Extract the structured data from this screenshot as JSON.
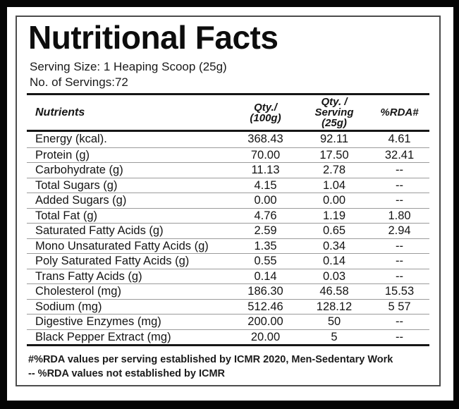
{
  "label": {
    "title": "Nutritional Facts",
    "serving_size": "Serving Size: 1 Heaping Scoop (25g)",
    "servings_count": "No. of Servings:72",
    "table": {
      "columns": {
        "nutrients": "Nutrients",
        "qty_100g": "Qty./\n(100g)",
        "qty_serving": "Qty. /\nServing\n(25g)",
        "rda": "%RDA#"
      },
      "rows": [
        {
          "name": "Energy (kcal).",
          "per_100g": "368.43",
          "per_serving": "92.11",
          "rda": "4.61"
        },
        {
          "name": "Protein (g)",
          "per_100g": "70.00",
          "per_serving": "17.50",
          "rda": "32.41"
        },
        {
          "name": "Carbohydrate (g)",
          "per_100g": "11.13",
          "per_serving": "2.78",
          "rda": "--"
        },
        {
          "name": "Total Sugars (g)",
          "per_100g": "4.15",
          "per_serving": "1.04",
          "rda": "--"
        },
        {
          "name": "Added Sugars (g)",
          "per_100g": "0.00",
          "per_serving": "0.00",
          "rda": "--"
        },
        {
          "name": "Total Fat (g)",
          "per_100g": "4.76",
          "per_serving": "1.19",
          "rda": "1.80"
        },
        {
          "name": "Saturated Fatty Acids (g)",
          "per_100g": "2.59",
          "per_serving": "0.65",
          "rda": "2.94"
        },
        {
          "name": "Mono Unsaturated Fatty Acids (g)",
          "per_100g": "1.35",
          "per_serving": "0.34",
          "rda": "--"
        },
        {
          "name": "Poly Saturated Fatty Acids (g)",
          "per_100g": "0.55",
          "per_serving": "0.14",
          "rda": "--"
        },
        {
          "name": "Trans Fatty Acids (g)",
          "per_100g": "0.14",
          "per_serving": "0.03",
          "rda": "--"
        },
        {
          "name": "Cholesterol (mg)",
          "per_100g": "186.30",
          "per_serving": "46.58",
          "rda": "15.53"
        },
        {
          "name": "Sodium (mg)",
          "per_100g": "512.46",
          "per_serving": "128.12",
          "rda": "5 57"
        },
        {
          "name": "Digestive Enzymes (mg)",
          "per_100g": "200.00",
          "per_serving": "50",
          "rda": "--"
        },
        {
          "name": "Black Pepper Extract (mg)",
          "per_100g": "20.00",
          "per_serving": "5",
          "rda": "--"
        }
      ]
    },
    "footnotes": [
      "#%RDA values per serving established by ICMR 2020, Men-Sedentary Work",
      "-- %RDA values not established by ICMR"
    ]
  },
  "colors": {
    "frame": "#050505",
    "paper": "#ffffff",
    "border": "#4c4c4c",
    "rule_heavy": "#161616",
    "rule_light": "#9b9b9b"
  }
}
